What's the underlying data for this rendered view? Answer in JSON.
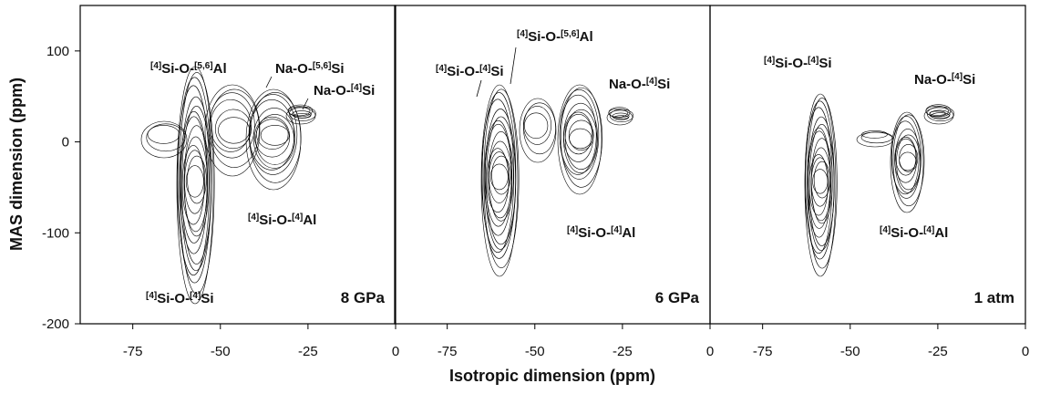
{
  "chart_data": {
    "type": "contour",
    "y_label": "MAS dimension (ppm)",
    "x_label": "Isotropic dimension (ppm)",
    "ylim": [
      -200,
      150
    ],
    "yticks": [
      100,
      0,
      -100,
      -200
    ],
    "panels": [
      {
        "label": "8 GPa",
        "xlim": [
          -90,
          0
        ],
        "xticks": [
          -75,
          -50,
          -25,
          0
        ],
        "annotations": [
          "[4]Si-O-[5,6]Al",
          "Na-O-[5,6]Si",
          "Na-O-[4]Si",
          "[4]Si-O-[4]Al",
          "[4]Si-O-[4]Si"
        ]
      },
      {
        "label": "6 GPa",
        "xlim": [
          -90,
          0
        ],
        "xticks": [
          -75,
          -50,
          -25,
          0
        ],
        "annotations": [
          "[4]Si-O-[5,6]Al",
          "[4]Si-O-[4]Si",
          "Na-O-[4]Si",
          "[4]Si-O-[4]Al"
        ]
      },
      {
        "label": "1 atm",
        "xlim": [
          -90,
          0
        ],
        "xticks": [
          -75,
          -50,
          -25,
          0
        ],
        "annotations": [
          "[4]Si-O-[4]Si",
          "Na-O-[4]Si",
          "[4]Si-O-[4]Al"
        ]
      }
    ]
  }
}
